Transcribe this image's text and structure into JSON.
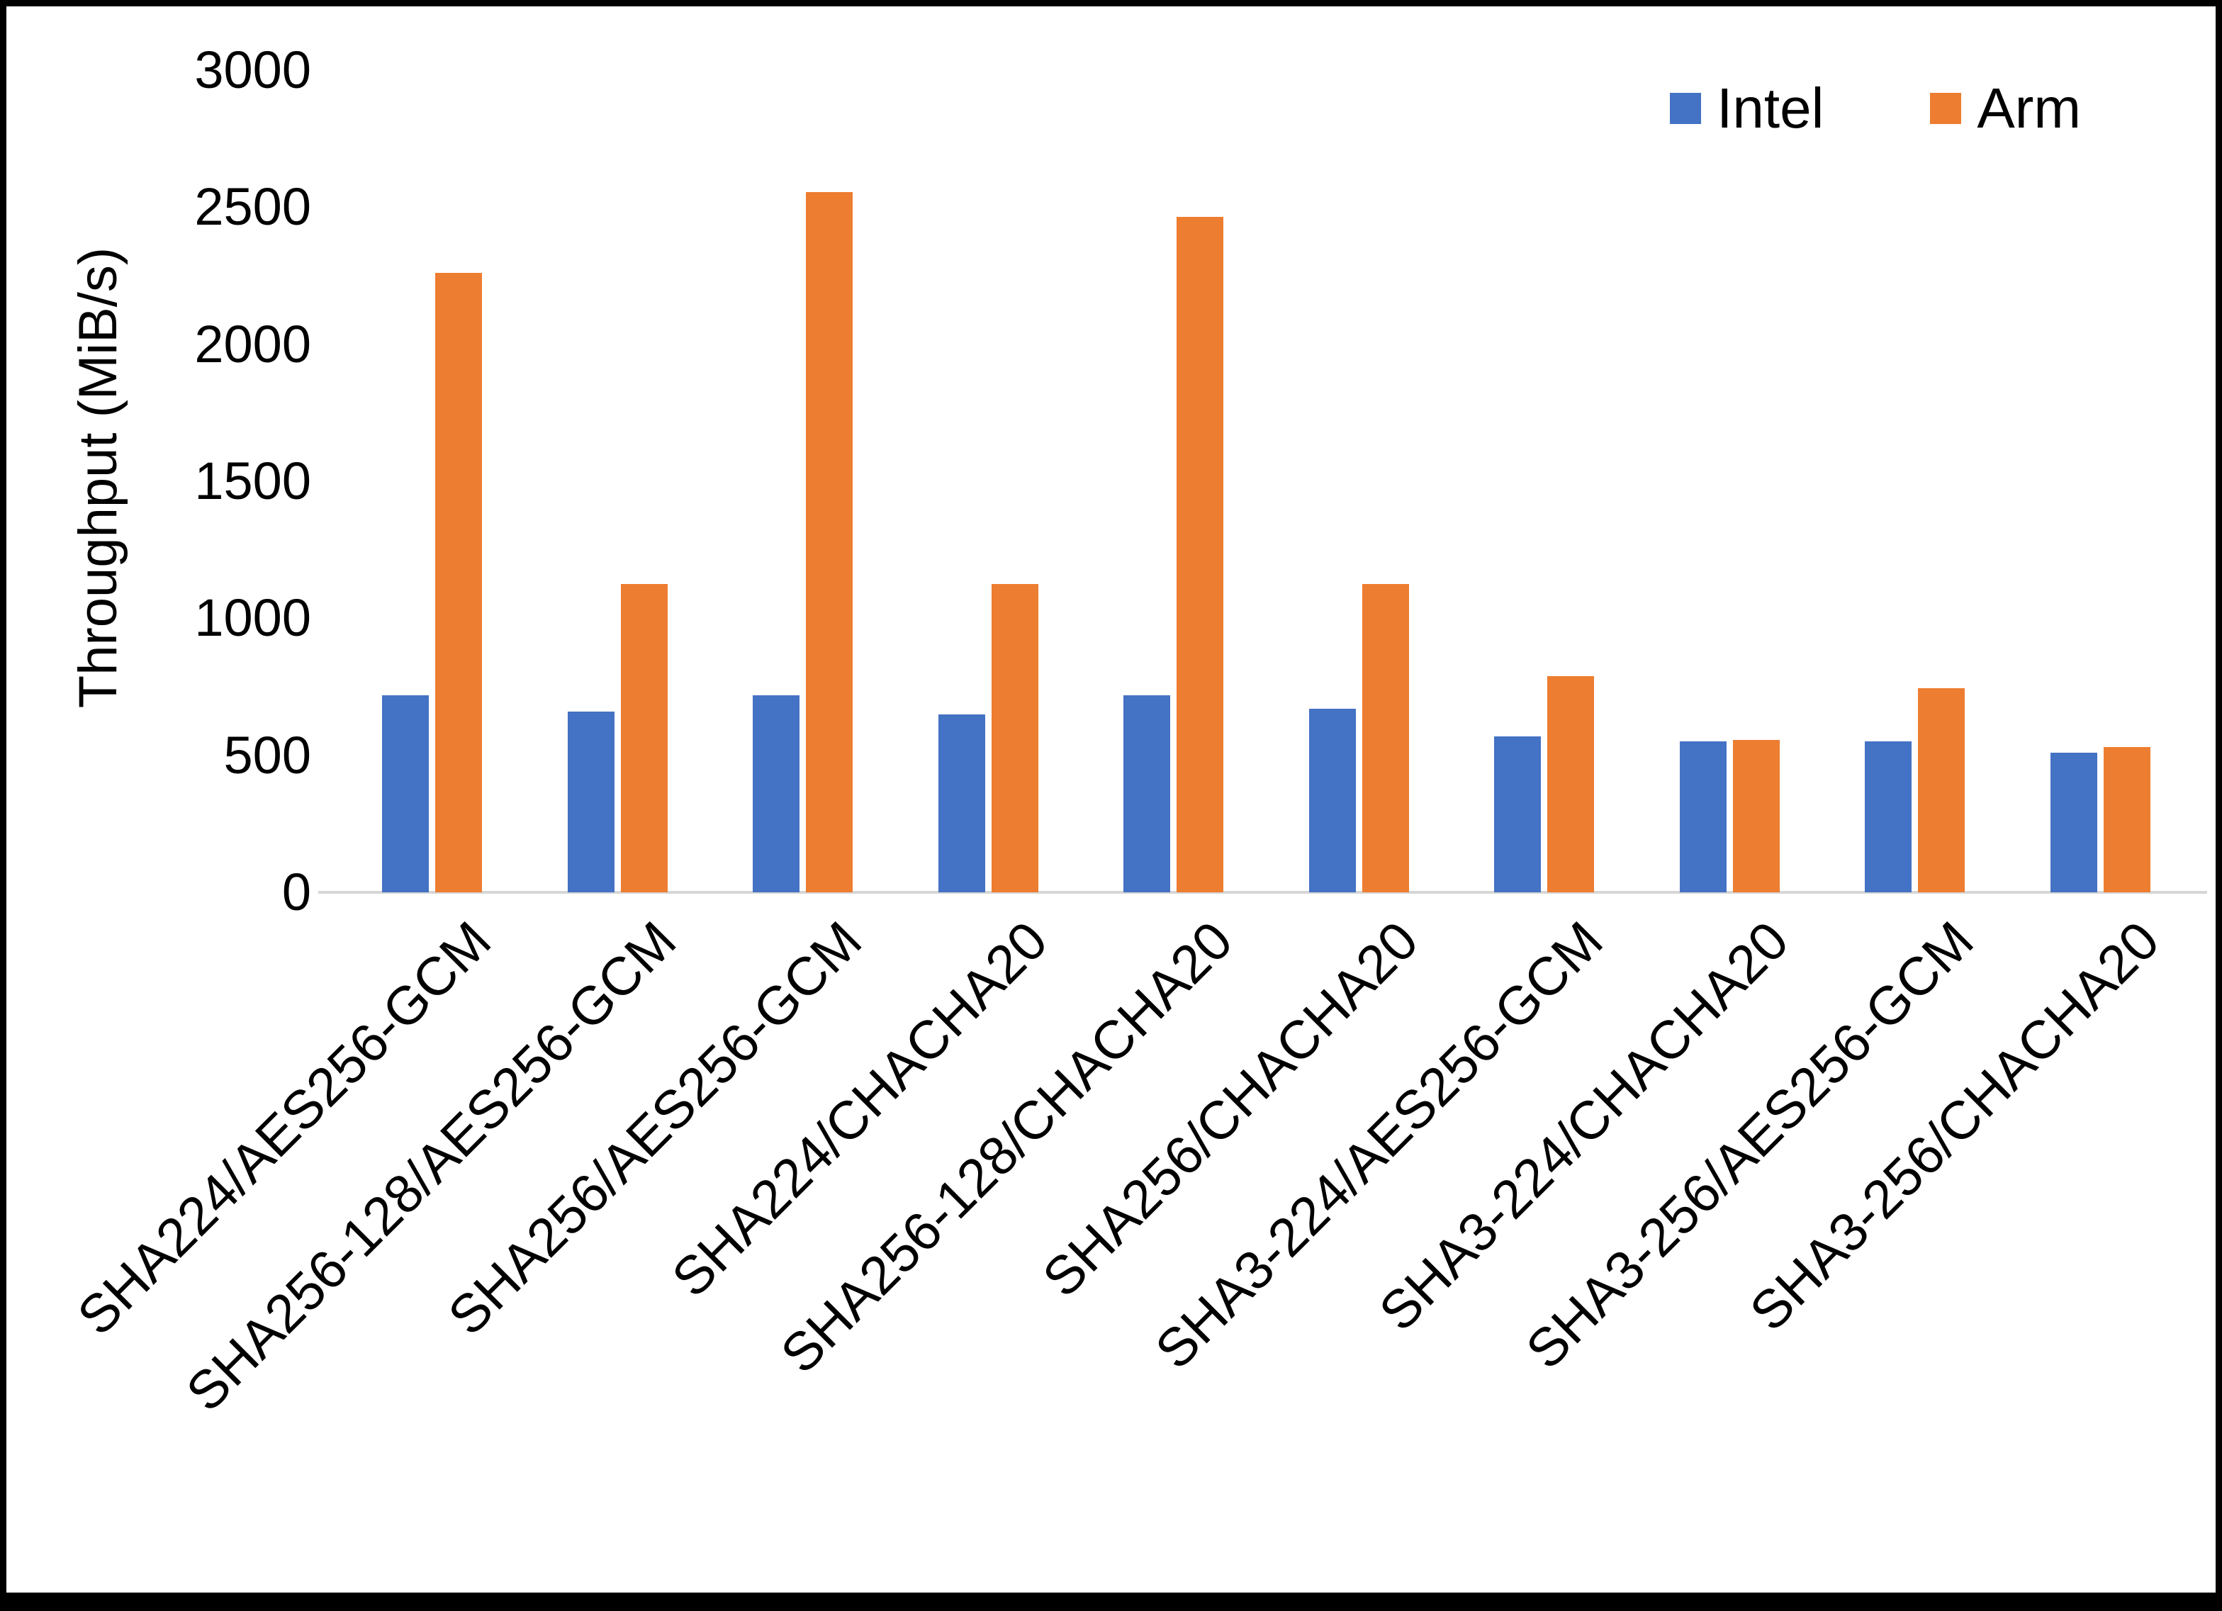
{
  "chart_data": {
    "type": "bar",
    "title": "",
    "xlabel": "",
    "ylabel": "Throughput (MiB/s)",
    "ylim": [
      0,
      3000
    ],
    "yticks": [
      0,
      500,
      1000,
      1500,
      2000,
      2500,
      3000
    ],
    "grid": false,
    "legend_position": "top-right",
    "background_color": "#FFFFFF",
    "border_color": "#000000",
    "axis_line_color": "#D6D6D6",
    "categories": [
      "SHA224/AES256-GCM",
      "SHA256-128/AES256-GCM",
      "SHA256/AES256-GCM",
      "SHA224/CHACHA20",
      "SHA256-128/CHACHA20",
      "SHA256/CHACHA20",
      "SHA3-224/AES256-GCM",
      "SHA3-224/CHACHA20",
      "SHA3-256/AES256-GCM",
      "SHA3-256/CHACHA20"
    ],
    "series": [
      {
        "name": "Intel",
        "color": "#4472C4",
        "values": [
          720,
          660,
          720,
          650,
          720,
          670,
          570,
          550,
          550,
          510
        ]
      },
      {
        "name": "Arm",
        "color": "#ED7D31",
        "values": [
          2260,
          1125,
          2555,
          1125,
          2465,
          1125,
          790,
          555,
          745,
          530
        ]
      }
    ]
  }
}
